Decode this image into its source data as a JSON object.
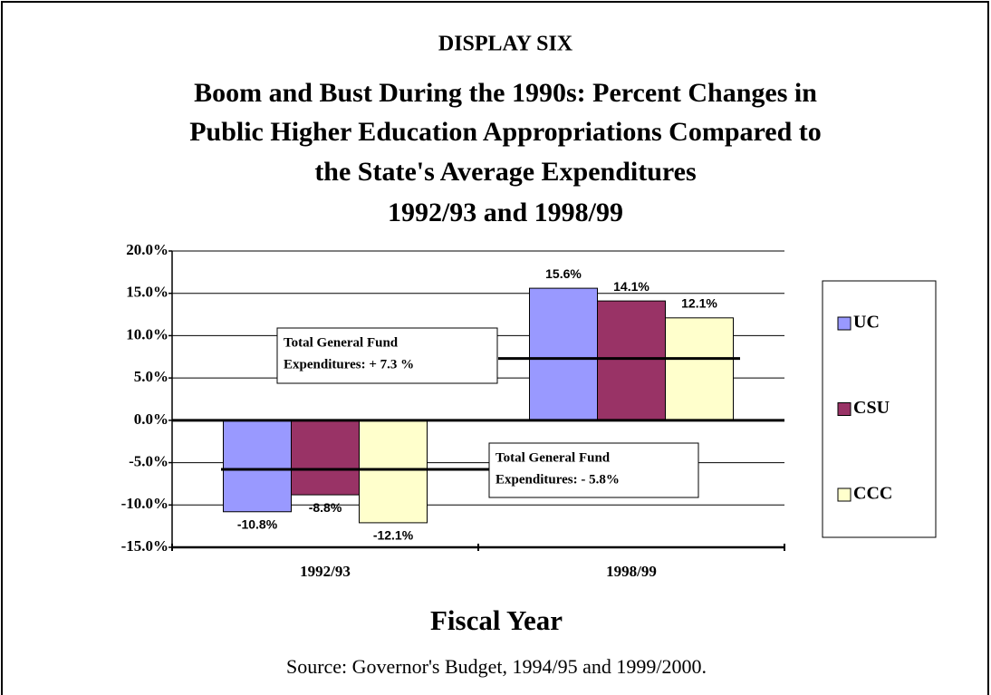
{
  "chart_data": {
    "type": "bar",
    "supertitle": "DISPLAY SIX",
    "title": [
      "Boom and Bust During the 1990s: Percent Changes in",
      "Public Higher Education Appropriations Compared to",
      "the State's Average Expenditures",
      "1992/93 and 1998/99"
    ],
    "x_label": "Fiscal Year",
    "source": "Source: Governor's Budget, 1994/95 and 1999/2000.",
    "categories": [
      "1992/93",
      "1998/99"
    ],
    "series": [
      {
        "name": "UC",
        "color": "#9999ff",
        "values": [
          -10.8,
          15.6
        ],
        "value_labels": [
          "-10.8%",
          "15.6%"
        ]
      },
      {
        "name": "CSU",
        "color": "#993366",
        "values": [
          -8.8,
          14.1
        ],
        "value_labels": [
          "-8.8%",
          "14.1%"
        ]
      },
      {
        "name": "CCC",
        "color": "#ffffcc",
        "values": [
          -12.1,
          12.1
        ],
        "value_labels": [
          "-12.1%",
          "12.1%"
        ]
      }
    ],
    "annotations": [
      {
        "text": [
          "Total General Fund",
          "Expenditures: + 7.3 %"
        ],
        "value": 7.3
      },
      {
        "text": [
          "Total General Fund",
          "Expenditures: - 5.8%"
        ],
        "value": -5.8
      }
    ],
    "ylim": [
      -15,
      20
    ],
    "yticks": [
      {
        "value": -15,
        "label": "-15.0%"
      },
      {
        "value": -10,
        "label": "-10.0%"
      },
      {
        "value": -5,
        "label": "-5.0%"
      },
      {
        "value": 0,
        "label": "0.0%"
      },
      {
        "value": 5,
        "label": "5.0%"
      },
      {
        "value": 10,
        "label": "10.0%"
      },
      {
        "value": 15,
        "label": "15.0%"
      },
      {
        "value": 20,
        "label": "20.0%"
      }
    ],
    "grid": true,
    "legend": "right"
  }
}
